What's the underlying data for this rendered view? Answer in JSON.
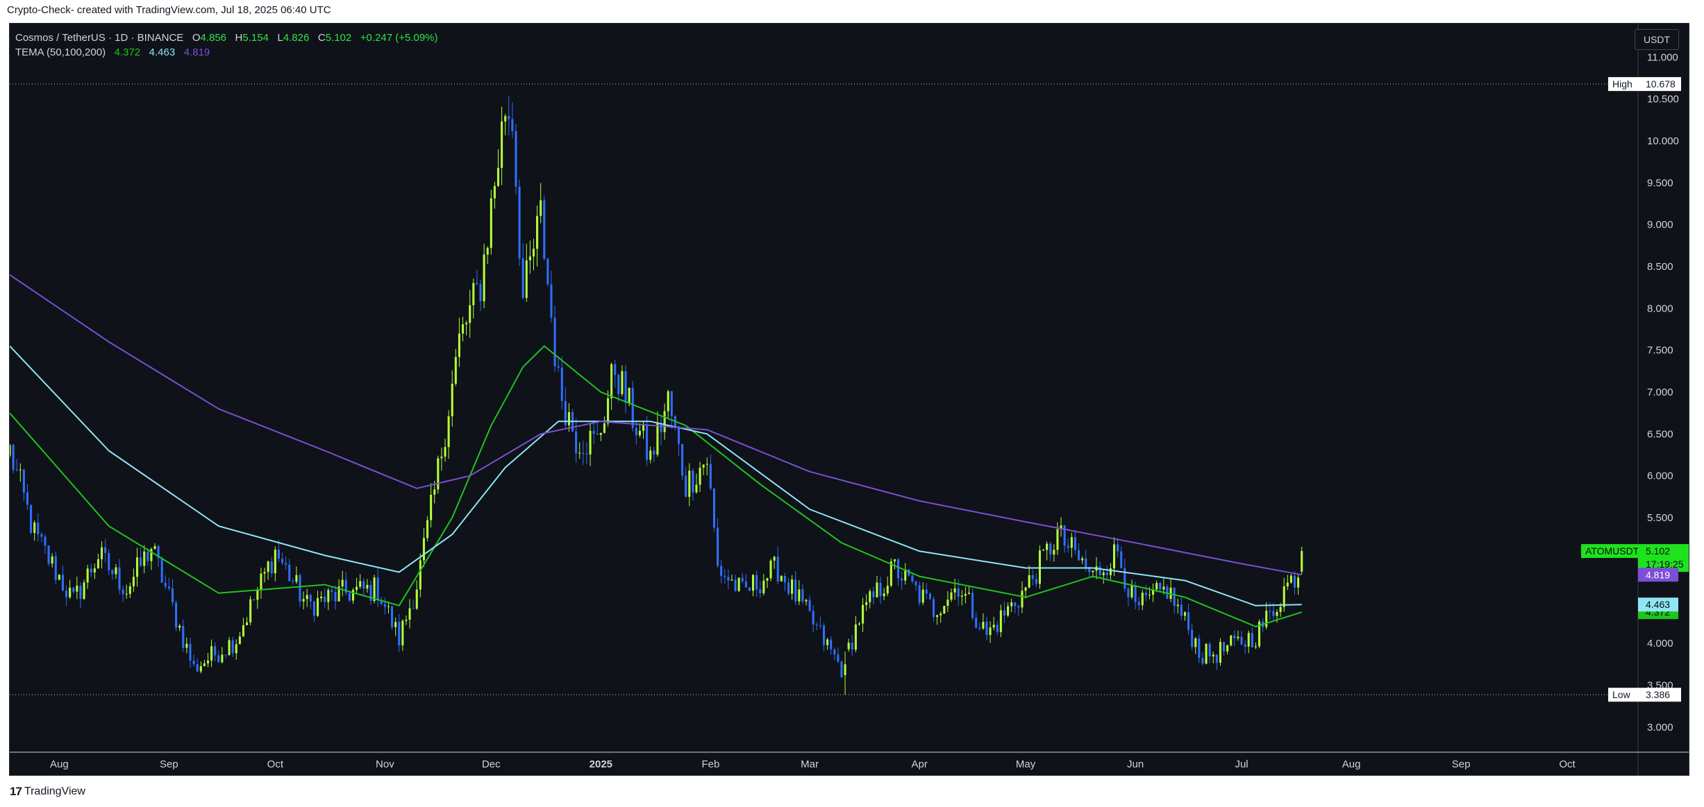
{
  "caption": "Crypto-Check- created with TradingView.com, Jul 18, 2025 06:40 UTC",
  "currency": "USDT",
  "footer": {
    "logo_mark": "17",
    "brand": "TradingView"
  },
  "legend": {
    "symbol": "Cosmos / TetherUS · 1D · BINANCE",
    "o_label": "O",
    "o": "4.856",
    "h_label": "H",
    "h": "5.154",
    "l_label": "L",
    "l": "4.826",
    "c_label": "C",
    "c": "5.102",
    "change": "+0.247 (+5.09%)",
    "indicator": "TEMA (50,100,200)",
    "v1": "4.372",
    "v2": "4.463",
    "v3": "4.819"
  },
  "colors": {
    "background": "#0f1218",
    "up_candle": "#b6ff3a",
    "down_candle": "#2f6fff",
    "tema50": "#1fc41f",
    "tema100": "#8ee6f5",
    "tema200": "#7b4fd6",
    "badge_last": "#1ee21e"
  },
  "chart_data": {
    "type": "candlestick",
    "symbol": "ATOMUSDT",
    "timeframe": "1D",
    "ylim": [
      2.7,
      11.4
    ],
    "y_ticks": [
      "3.000",
      "3.500",
      "4.000",
      "4.500",
      "5.000",
      "5.500",
      "6.000",
      "6.500",
      "7.000",
      "7.500",
      "8.000",
      "8.500",
      "9.000",
      "9.500",
      "10.000",
      "10.500",
      "11.000"
    ],
    "x_ticks": [
      "Aug",
      "Sep",
      "Oct",
      "Nov",
      "Dec",
      "2025",
      "Feb",
      "Mar",
      "Apr",
      "May",
      "Jun",
      "Jul",
      "Aug",
      "Sep",
      "Oct"
    ],
    "high": {
      "label": "High",
      "value": "10.678"
    },
    "low": {
      "label": "Low",
      "value": "3.386"
    },
    "last": {
      "ticker": "ATOMUSDT",
      "price": "5.102",
      "countdown": "17:19:25"
    },
    "candle_anchors": [
      {
        "date": "2024-07-18",
        "close": 6.3
      },
      {
        "date": "2024-07-25",
        "close": 5.3
      },
      {
        "date": "2024-08-05",
        "close": 4.5
      },
      {
        "date": "2024-08-12",
        "close": 5.05
      },
      {
        "date": "2024-08-20",
        "close": 4.65
      },
      {
        "date": "2024-08-27",
        "close": 5.15
      },
      {
        "date": "2024-09-08",
        "close": 3.7
      },
      {
        "date": "2024-09-20",
        "close": 4.05
      },
      {
        "date": "2024-10-01",
        "close": 5.1
      },
      {
        "date": "2024-10-10",
        "close": 4.45
      },
      {
        "date": "2024-10-20",
        "close": 4.6
      },
      {
        "date": "2024-10-30",
        "close": 4.65
      },
      {
        "date": "2024-11-05",
        "close": 4.05
      },
      {
        "date": "2024-11-10",
        "close": 4.7
      },
      {
        "date": "2024-11-15",
        "close": 5.8
      },
      {
        "date": "2024-11-22",
        "close": 7.6
      },
      {
        "date": "2024-11-28",
        "close": 8.3
      },
      {
        "date": "2024-12-05",
        "close": 10.4
      },
      {
        "date": "2024-12-07",
        "close": 10.3
      },
      {
        "date": "2024-12-10",
        "close": 8.1
      },
      {
        "date": "2024-12-15",
        "close": 9.1
      },
      {
        "date": "2024-12-20",
        "close": 7.1
      },
      {
        "date": "2024-12-25",
        "close": 6.45
      },
      {
        "date": "2024-12-31",
        "close": 6.4
      },
      {
        "date": "2025-01-05",
        "close": 7.3
      },
      {
        "date": "2025-01-10",
        "close": 6.7
      },
      {
        "date": "2025-01-15",
        "close": 6.2
      },
      {
        "date": "2025-01-20",
        "close": 6.9
      },
      {
        "date": "2025-01-25",
        "close": 5.9
      },
      {
        "date": "2025-01-31",
        "close": 6.2
      },
      {
        "date": "2025-02-03",
        "close": 4.9
      },
      {
        "date": "2025-02-10",
        "close": 4.6
      },
      {
        "date": "2025-02-20",
        "close": 4.9
      },
      {
        "date": "2025-03-01",
        "close": 4.3
      },
      {
        "date": "2025-03-10",
        "close": 3.7
      },
      {
        "date": "2025-03-15",
        "close": 4.3
      },
      {
        "date": "2025-03-25",
        "close": 4.9
      },
      {
        "date": "2025-04-05",
        "close": 4.4
      },
      {
        "date": "2025-04-12",
        "close": 4.7
      },
      {
        "date": "2025-04-20",
        "close": 4.1
      },
      {
        "date": "2025-05-01",
        "close": 4.65
      },
      {
        "date": "2025-05-10",
        "close": 5.3
      },
      {
        "date": "2025-05-20",
        "close": 4.8
      },
      {
        "date": "2025-05-27",
        "close": 5.1
      },
      {
        "date": "2025-06-01",
        "close": 4.4
      },
      {
        "date": "2025-06-10",
        "close": 4.65
      },
      {
        "date": "2025-06-20",
        "close": 3.85
      },
      {
        "date": "2025-06-25",
        "close": 3.9
      },
      {
        "date": "2025-07-05",
        "close": 4.1
      },
      {
        "date": "2025-07-10",
        "close": 4.4
      },
      {
        "date": "2025-07-13",
        "close": 4.65
      },
      {
        "date": "2025-07-17",
        "close": 4.86
      },
      {
        "date": "2025-07-18",
        "close": 5.102
      }
    ],
    "special_candles": [
      {
        "date": "2025-03-11",
        "open": 3.62,
        "high": 3.9,
        "low": 3.386,
        "close": 3.75
      },
      {
        "date": "2025-07-18",
        "open": 4.856,
        "high": 5.154,
        "low": 4.826,
        "close": 5.102
      }
    ],
    "series": [
      {
        "name": "TEMA 50",
        "last": "4.372",
        "points": [
          {
            "date": "2024-07-18",
            "value": 6.75
          },
          {
            "date": "2024-08-15",
            "value": 5.4
          },
          {
            "date": "2024-09-15",
            "value": 4.6
          },
          {
            "date": "2024-10-15",
            "value": 4.7
          },
          {
            "date": "2024-11-05",
            "value": 4.45
          },
          {
            "date": "2024-11-20",
            "value": 5.5
          },
          {
            "date": "2024-12-01",
            "value": 6.6
          },
          {
            "date": "2024-12-10",
            "value": 7.3
          },
          {
            "date": "2024-12-16",
            "value": 7.55
          },
          {
            "date": "2025-01-01",
            "value": 7.0
          },
          {
            "date": "2025-01-25",
            "value": 6.6
          },
          {
            "date": "2025-02-15",
            "value": 5.9
          },
          {
            "date": "2025-03-10",
            "value": 5.2
          },
          {
            "date": "2025-04-01",
            "value": 4.8
          },
          {
            "date": "2025-05-01",
            "value": 4.55
          },
          {
            "date": "2025-05-20",
            "value": 4.8
          },
          {
            "date": "2025-06-15",
            "value": 4.55
          },
          {
            "date": "2025-07-05",
            "value": 4.2
          },
          {
            "date": "2025-07-18",
            "value": 4.372
          }
        ]
      },
      {
        "name": "TEMA 100",
        "last": "4.463",
        "points": [
          {
            "date": "2024-07-18",
            "value": 7.55
          },
          {
            "date": "2024-08-15",
            "value": 6.3
          },
          {
            "date": "2024-09-15",
            "value": 5.4
          },
          {
            "date": "2024-10-15",
            "value": 5.05
          },
          {
            "date": "2024-11-05",
            "value": 4.85
          },
          {
            "date": "2024-11-20",
            "value": 5.3
          },
          {
            "date": "2024-12-05",
            "value": 6.1
          },
          {
            "date": "2024-12-20",
            "value": 6.65
          },
          {
            "date": "2025-01-15",
            "value": 6.65
          },
          {
            "date": "2025-01-31",
            "value": 6.5
          },
          {
            "date": "2025-03-01",
            "value": 5.6
          },
          {
            "date": "2025-04-01",
            "value": 5.1
          },
          {
            "date": "2025-05-01",
            "value": 4.9
          },
          {
            "date": "2025-05-20",
            "value": 4.9
          },
          {
            "date": "2025-06-15",
            "value": 4.75
          },
          {
            "date": "2025-07-05",
            "value": 4.45
          },
          {
            "date": "2025-07-18",
            "value": 4.463
          }
        ]
      },
      {
        "name": "TEMA 200",
        "last": "4.819",
        "points": [
          {
            "date": "2024-07-18",
            "value": 8.4
          },
          {
            "date": "2024-08-15",
            "value": 7.6
          },
          {
            "date": "2024-09-15",
            "value": 6.8
          },
          {
            "date": "2024-10-15",
            "value": 6.3
          },
          {
            "date": "2024-11-10",
            "value": 5.85
          },
          {
            "date": "2024-11-25",
            "value": 6.0
          },
          {
            "date": "2024-12-15",
            "value": 6.5
          },
          {
            "date": "2025-01-01",
            "value": 6.65
          },
          {
            "date": "2025-01-31",
            "value": 6.55
          },
          {
            "date": "2025-03-01",
            "value": 6.05
          },
          {
            "date": "2025-04-01",
            "value": 5.7
          },
          {
            "date": "2025-05-01",
            "value": 5.45
          },
          {
            "date": "2025-06-01",
            "value": 5.2
          },
          {
            "date": "2025-07-01",
            "value": 4.95
          },
          {
            "date": "2025-07-18",
            "value": 4.819
          }
        ]
      }
    ]
  }
}
